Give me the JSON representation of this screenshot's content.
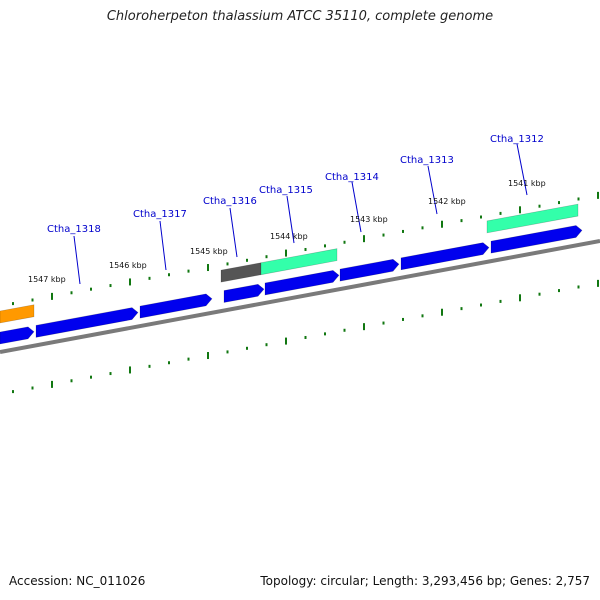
{
  "title": "Chloroherpeton thalassium ATCC 35110, complete genome",
  "footer": {
    "accession": "Accession: NC_011026",
    "stats": "Topology: circular; Length: 3,293,456 bp; Genes: 2,757"
  },
  "colors": {
    "cds": "#0000ee",
    "rna": "#33ffaa",
    "rna_dark": "#1a9966",
    "orange": "#ff9900",
    "pseudo": "#555555",
    "backbone": "#7a7a7a",
    "tick": "#117711",
    "leader": "#0000cc"
  },
  "position_labels": [
    "1547 kbp",
    "1546 kbp",
    "1545 kbp",
    "1544 kbp",
    "1543 kbp",
    "1542 kbp",
    "1541 kbp"
  ],
  "gene_labels": [
    "Ctha_1318",
    "Ctha_1317",
    "Ctha_1316",
    "Ctha_1315",
    "Ctha_1314",
    "Ctha_1313",
    "Ctha_1312"
  ]
}
